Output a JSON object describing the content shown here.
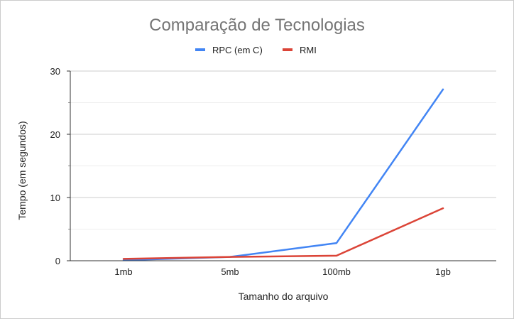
{
  "chart_data": {
    "type": "line",
    "title": "Comparação de Tecnologias",
    "xlabel": "Tamanho do arquivo",
    "ylabel": "Tempo (em segundos)",
    "categories": [
      "1mb",
      "5mb",
      "100mb",
      "1gb"
    ],
    "ylim": [
      0,
      30
    ],
    "yticks": [
      0,
      10,
      20,
      30
    ],
    "grid": true,
    "legend": "top",
    "series": [
      {
        "name": "RPC (em C)",
        "color": "#4285f4",
        "values": [
          0.1,
          0.6,
          2.8,
          27.1
        ]
      },
      {
        "name": "RMI",
        "color": "#db4437",
        "values": [
          0.3,
          0.6,
          0.8,
          8.3
        ]
      }
    ]
  }
}
